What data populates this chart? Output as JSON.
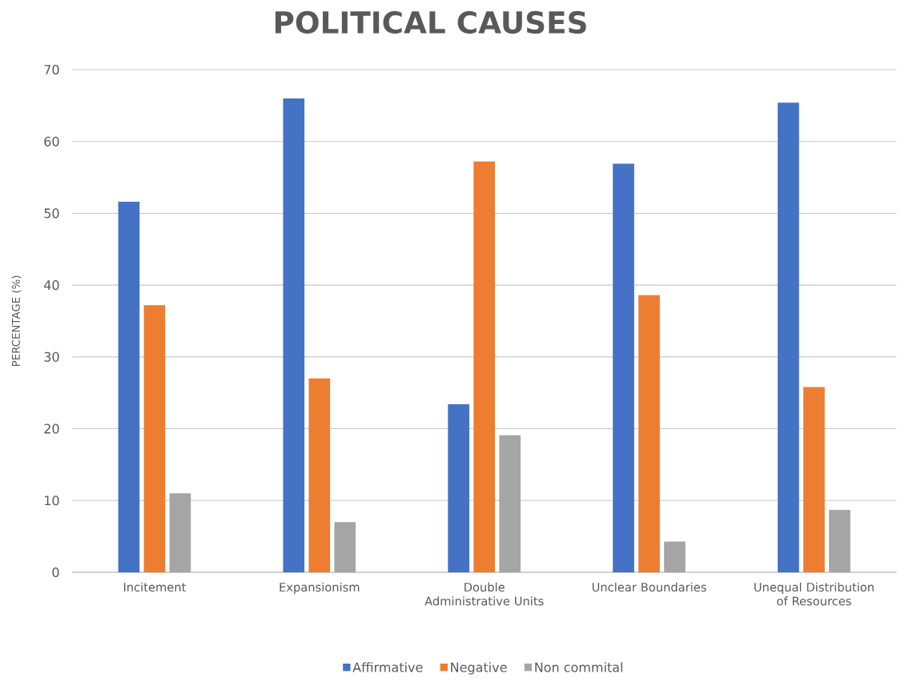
{
  "chart_data": {
    "type": "bar",
    "title": "POLITICAL CAUSES",
    "ylabel": "PERCENTAGE (%)",
    "categories": [
      "Incitement",
      "Expansionism",
      "Double Administrative Units",
      "Unclear Boundaries",
      "Unequal Distribution of Resources"
    ],
    "series": [
      {
        "name": "Affirmative",
        "color": "#4472c4",
        "values": [
          51.6,
          66.0,
          23.4,
          56.9,
          65.4
        ]
      },
      {
        "name": "Negative",
        "color": "#ed7d31",
        "values": [
          37.2,
          27.0,
          57.2,
          38.6,
          25.8
        ]
      },
      {
        "name": "Non commital",
        "color": "#a5a5a5",
        "values": [
          11.0,
          7.0,
          19.1,
          4.3,
          8.7
        ]
      }
    ],
    "ylim": [
      0,
      70
    ],
    "yticks": [
      0,
      10,
      20,
      30,
      40,
      50,
      60,
      70
    ],
    "grid": "y",
    "legend": "bottom"
  }
}
